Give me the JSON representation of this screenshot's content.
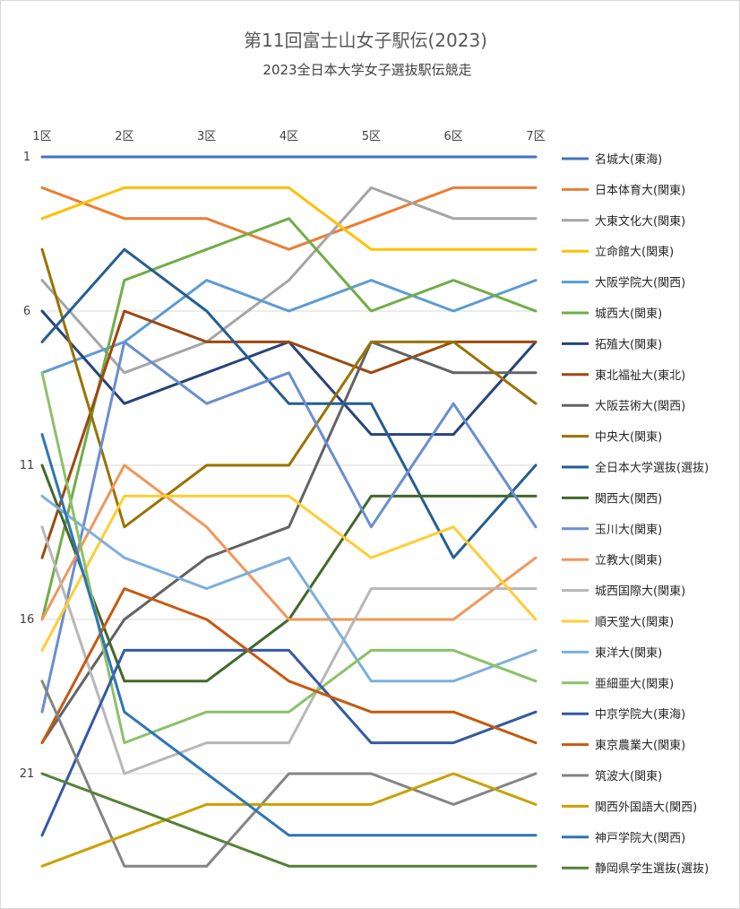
{
  "chart_data": {
    "type": "line",
    "title": "第11回富士山女子駅伝(2023)",
    "subtitle": "2023全日本大学女子選抜駅伝競走",
    "x_categories": [
      "1区",
      "2区",
      "3区",
      "4区",
      "5区",
      "6区",
      "7区"
    ],
    "y_tick_labels": [
      "1",
      "6",
      "11",
      "16",
      "21"
    ],
    "ylim": [
      1,
      24
    ],
    "y_reversed": true,
    "grid": true,
    "legend_position": "right",
    "series": [
      {
        "name": "名城大(東海)",
        "color": "#4472C4",
        "values": [
          1,
          1,
          1,
          1,
          1,
          1,
          1
        ]
      },
      {
        "name": "日本体育大(関東)",
        "color": "#ED7D31",
        "values": [
          2,
          3,
          3,
          4,
          3,
          2,
          2
        ]
      },
      {
        "name": "大東文化大(関東)",
        "color": "#A5A5A5",
        "values": [
          5,
          8,
          7,
          5,
          2,
          3,
          3
        ]
      },
      {
        "name": "立命館大(関東)",
        "color": "#FFC000",
        "values": [
          3,
          2,
          2,
          2,
          4,
          4,
          4
        ]
      },
      {
        "name": "大阪学院大(関西)",
        "color": "#5B9BD5",
        "values": [
          8,
          7,
          5,
          6,
          5,
          6,
          5
        ]
      },
      {
        "name": "城西大(関東)",
        "color": "#70AD47",
        "values": [
          16,
          5,
          4,
          3,
          6,
          5,
          6
        ]
      },
      {
        "name": "拓殖大(関東)",
        "color": "#264478",
        "values": [
          6,
          9,
          8,
          7,
          10,
          10,
          7
        ]
      },
      {
        "name": "東北福祉大(東北)",
        "color": "#9E480E",
        "values": [
          14,
          6,
          7,
          7,
          8,
          7,
          7
        ]
      },
      {
        "name": "大阪芸術大(関西)",
        "color": "#636363",
        "values": [
          20,
          16,
          14,
          13,
          7,
          8,
          8
        ]
      },
      {
        "name": "中央大(関東)",
        "color": "#997300",
        "values": [
          4,
          13,
          11,
          11,
          7,
          7,
          9
        ]
      },
      {
        "name": "全日本大学選抜(選抜)",
        "color": "#255E91",
        "values": [
          7,
          4,
          6,
          9,
          9,
          14,
          11
        ]
      },
      {
        "name": "関西大(関西)",
        "color": "#43682B",
        "values": [
          11,
          18,
          18,
          16,
          12,
          12,
          12
        ]
      },
      {
        "name": "玉川大(関東)",
        "color": "#698ED0",
        "values": [
          19,
          7,
          9,
          8,
          13,
          9,
          13
        ]
      },
      {
        "name": "立教大(関東)",
        "color": "#F1975A",
        "values": [
          16,
          11,
          13,
          16,
          16,
          16,
          14
        ]
      },
      {
        "name": "城西国際大(関東)",
        "color": "#B7B7B7",
        "values": [
          13,
          21,
          20,
          20,
          15,
          15,
          15
        ]
      },
      {
        "name": "順天堂大(関東)",
        "color": "#FFCD33",
        "values": [
          17,
          12,
          12,
          12,
          14,
          13,
          16
        ]
      },
      {
        "name": "東洋大(関東)",
        "color": "#7CAFDD",
        "values": [
          12,
          14,
          15,
          14,
          18,
          18,
          17
        ]
      },
      {
        "name": "亜細亜大(関東)",
        "color": "#8CC168",
        "values": [
          8,
          20,
          19,
          19,
          17,
          17,
          18
        ]
      },
      {
        "name": "中京学院大(東海)",
        "color": "#335AA1",
        "values": [
          23,
          17,
          17,
          17,
          20,
          20,
          19
        ]
      },
      {
        "name": "東京農業大(関東)",
        "color": "#C55A11",
        "values": [
          20,
          15,
          16,
          18,
          19,
          19,
          20
        ]
      },
      {
        "name": "筑波大(関東)",
        "color": "#848484",
        "values": [
          18,
          24,
          24,
          21,
          21,
          22,
          21
        ]
      },
      {
        "name": "関西外国語大(関西)",
        "color": "#C9A100",
        "values": [
          24,
          23,
          22,
          22,
          22,
          21,
          22
        ]
      },
      {
        "name": "神戸学院大(関西)",
        "color": "#2E75B6",
        "values": [
          10,
          19,
          21,
          23,
          23,
          23,
          23
        ]
      },
      {
        "name": "静岡県学生選抜(選抜)",
        "color": "#548235",
        "values": [
          21,
          22,
          23,
          24,
          24,
          24,
          24
        ]
      }
    ]
  }
}
